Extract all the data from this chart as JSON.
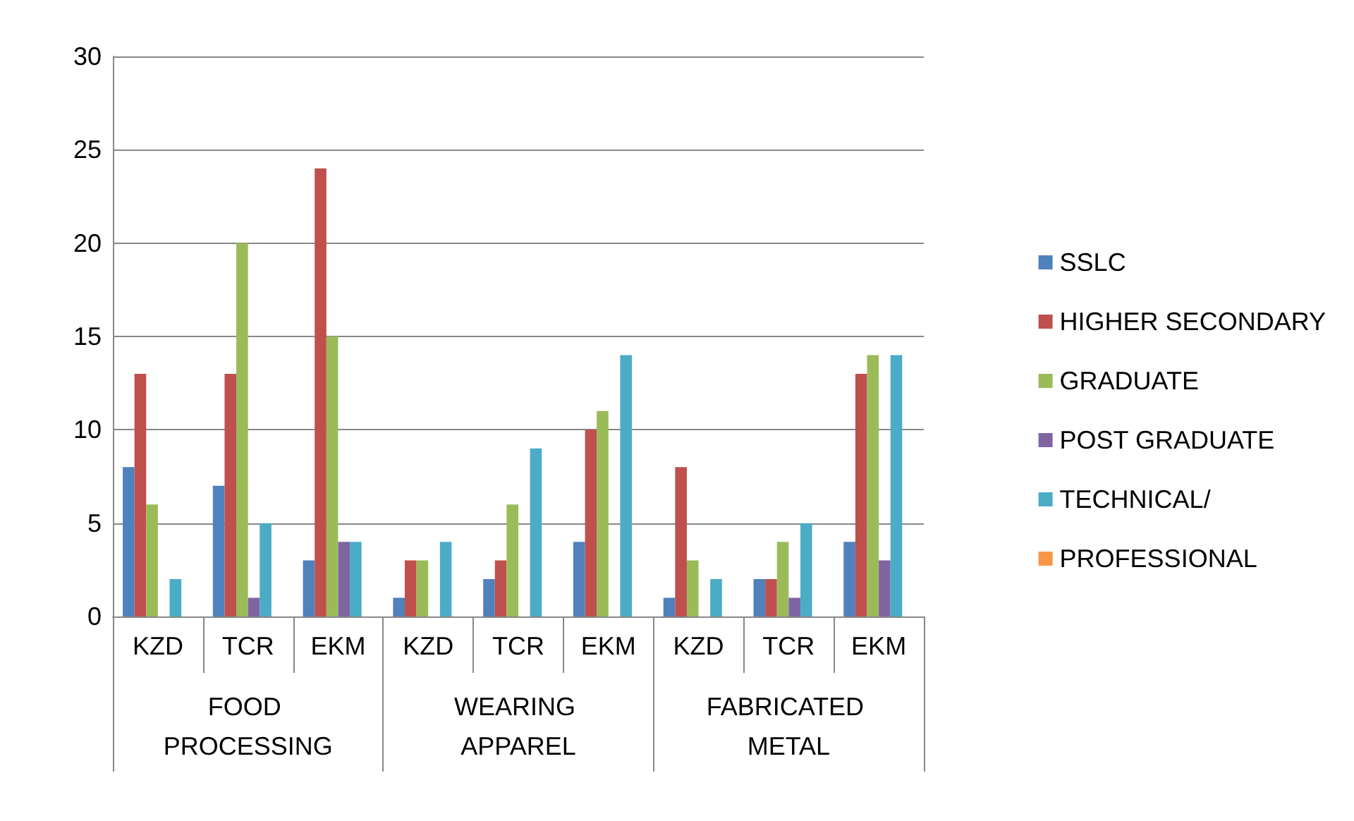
{
  "chart_data": {
    "type": "bar",
    "categories": [
      "KZD",
      "TCR",
      "EKM",
      "KZD",
      "TCR",
      "EKM",
      "KZD",
      "TCR",
      "EKM"
    ],
    "series": [
      {
        "name": "SSLC",
        "color": "#4f81bd",
        "values": [
          8,
          7,
          3,
          1,
          2,
          4,
          1,
          2,
          4
        ]
      },
      {
        "name": "HIGHER SECONDARY",
        "color": "#c0504d",
        "values": [
          13,
          13,
          24,
          3,
          3,
          10,
          8,
          2,
          13
        ]
      },
      {
        "name": "GRADUATE",
        "color": "#9bbb59",
        "values": [
          6,
          20,
          15,
          3,
          6,
          11,
          3,
          4,
          14
        ]
      },
      {
        "name": "POST GRADUATE",
        "color": "#8064a2",
        "values": [
          0,
          1,
          4,
          0,
          0,
          0,
          0,
          1,
          3
        ]
      },
      {
        "name": "TECHNICAL/",
        "color": "#4bacc6",
        "values": [
          2,
          5,
          4,
          4,
          9,
          14,
          2,
          5,
          14
        ]
      },
      {
        "name": "PROFESSIONAL",
        "color": "#f79646",
        "values": [
          null,
          null,
          null,
          null,
          null,
          null,
          null,
          null,
          null
        ]
      }
    ],
    "annotations": [
      "FOOD PROCESSING",
      "WEARING APPAREL",
      "FABRICATED METAL"
    ],
    "ylim": [
      0,
      30
    ],
    "yticks": [
      0,
      5,
      10,
      15,
      20,
      25,
      30
    ],
    "grid": "y",
    "legend": "right"
  }
}
